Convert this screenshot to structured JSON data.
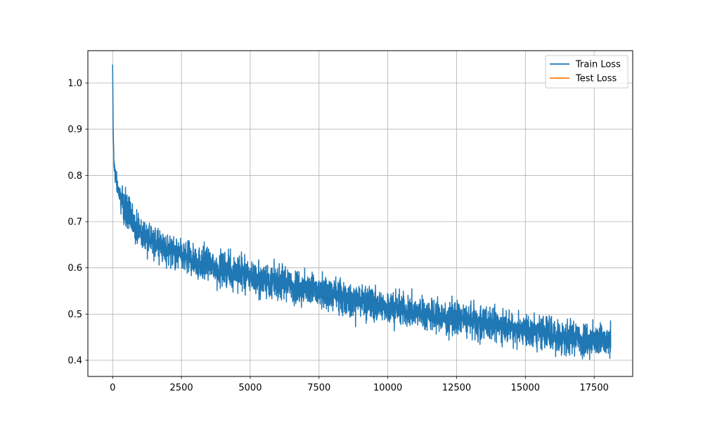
{
  "chart_data": {
    "type": "line",
    "title": "",
    "xlabel": "",
    "ylabel": "",
    "xlim": [
      -900,
      18900
    ],
    "ylim": [
      0.365,
      1.07
    ],
    "x_ticks": [
      0,
      2500,
      5000,
      7500,
      10000,
      12500,
      15000,
      17500
    ],
    "x_tick_labels": [
      "0",
      "2500",
      "5000",
      "7500",
      "10000",
      "12500",
      "15000",
      "17500"
    ],
    "y_ticks": [
      0.4,
      0.5,
      0.6,
      0.7,
      0.8,
      0.9,
      1.0
    ],
    "y_tick_labels": [
      "0.4",
      "0.5",
      "0.6",
      "0.7",
      "0.8",
      "0.9",
      "1.0"
    ],
    "grid": true,
    "legend": {
      "position": "top-right",
      "entries": [
        {
          "label": "Train Loss",
          "color": "#1f77b4"
        },
        {
          "label": "Test Loss",
          "color": "#ff7f0e"
        }
      ]
    },
    "series": [
      {
        "name": "Train Loss",
        "color": "#1f77b4",
        "noise": "high-frequency oscillation, band about ±0.03 around the trend",
        "trend_x": [
          0,
          20,
          50,
          100,
          200,
          400,
          700,
          1000,
          1500,
          2500,
          3500,
          5000,
          7500,
          10000,
          12500,
          15000,
          16500,
          18100
        ],
        "trend_y": [
          1.04,
          0.9,
          0.82,
          0.8,
          0.77,
          0.735,
          0.7,
          0.68,
          0.655,
          0.625,
          0.605,
          0.582,
          0.548,
          0.515,
          0.49,
          0.465,
          0.448,
          0.44
        ]
      },
      {
        "name": "Test Loss",
        "color": "#ff7f0e",
        "trend_x": [],
        "trend_y": []
      }
    ]
  }
}
